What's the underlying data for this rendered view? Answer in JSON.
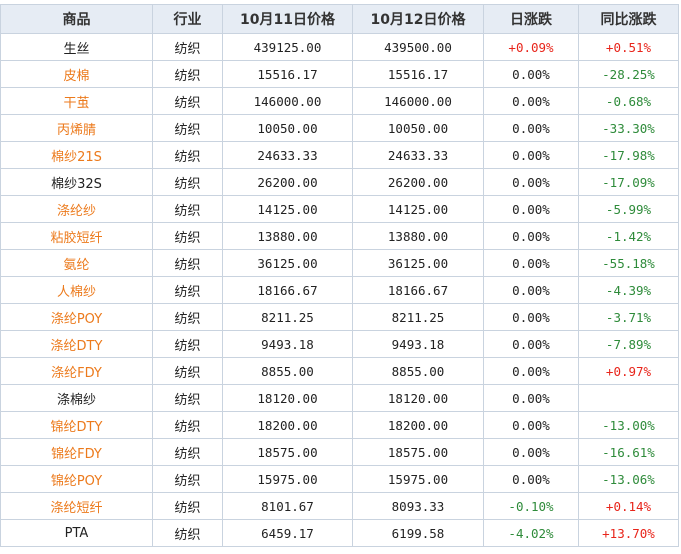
{
  "headers": [
    "商品",
    "行业",
    "10月11日价格",
    "10月12日价格",
    "日涨跌",
    "同比涨跌"
  ],
  "colors": {
    "link": "#ec7a1c",
    "up": "#e8251b",
    "down": "#2e8b3a",
    "header_bg": "#e6ecf4",
    "border": "#c9d3df"
  },
  "rows": [
    {
      "product": "生丝",
      "industry": "纺织",
      "price_oct11": "439125.00",
      "price_oct12": "439500.00",
      "daily_change": "+0.09%",
      "yoy_change": "+0.51%",
      "daily_dir": "up",
      "yoy_dir": "up",
      "name_color": "default"
    },
    {
      "product": "皮棉",
      "industry": "纺织",
      "price_oct11": "15516.17",
      "price_oct12": "15516.17",
      "daily_change": "0.00%",
      "yoy_change": "-28.25%",
      "daily_dir": "flat",
      "yoy_dir": "down",
      "name_color": "orange"
    },
    {
      "product": "干茧",
      "industry": "纺织",
      "price_oct11": "146000.00",
      "price_oct12": "146000.00",
      "daily_change": "0.00%",
      "yoy_change": "-0.68%",
      "daily_dir": "flat",
      "yoy_dir": "down",
      "name_color": "orange"
    },
    {
      "product": "丙烯腈",
      "industry": "纺织",
      "price_oct11": "10050.00",
      "price_oct12": "10050.00",
      "daily_change": "0.00%",
      "yoy_change": "-33.30%",
      "daily_dir": "flat",
      "yoy_dir": "down",
      "name_color": "orange"
    },
    {
      "product": "棉纱21S",
      "industry": "纺织",
      "price_oct11": "24633.33",
      "price_oct12": "24633.33",
      "daily_change": "0.00%",
      "yoy_change": "-17.98%",
      "daily_dir": "flat",
      "yoy_dir": "down",
      "name_color": "orange"
    },
    {
      "product": "棉纱32S",
      "industry": "纺织",
      "price_oct11": "26200.00",
      "price_oct12": "26200.00",
      "daily_change": "0.00%",
      "yoy_change": "-17.09%",
      "daily_dir": "flat",
      "yoy_dir": "down",
      "name_color": "default"
    },
    {
      "product": "涤纶纱",
      "industry": "纺织",
      "price_oct11": "14125.00",
      "price_oct12": "14125.00",
      "daily_change": "0.00%",
      "yoy_change": "-5.99%",
      "daily_dir": "flat",
      "yoy_dir": "down",
      "name_color": "orange"
    },
    {
      "product": "粘胶短纤",
      "industry": "纺织",
      "price_oct11": "13880.00",
      "price_oct12": "13880.00",
      "daily_change": "0.00%",
      "yoy_change": "-1.42%",
      "daily_dir": "flat",
      "yoy_dir": "down",
      "name_color": "orange"
    },
    {
      "product": "氨纶",
      "industry": "纺织",
      "price_oct11": "36125.00",
      "price_oct12": "36125.00",
      "daily_change": "0.00%",
      "yoy_change": "-55.18%",
      "daily_dir": "flat",
      "yoy_dir": "down",
      "name_color": "orange"
    },
    {
      "product": "人棉纱",
      "industry": "纺织",
      "price_oct11": "18166.67",
      "price_oct12": "18166.67",
      "daily_change": "0.00%",
      "yoy_change": "-4.39%",
      "daily_dir": "flat",
      "yoy_dir": "down",
      "name_color": "orange"
    },
    {
      "product": "涤纶POY",
      "industry": "纺织",
      "price_oct11": "8211.25",
      "price_oct12": "8211.25",
      "daily_change": "0.00%",
      "yoy_change": "-3.71%",
      "daily_dir": "flat",
      "yoy_dir": "down",
      "name_color": "orange"
    },
    {
      "product": "涤纶DTY",
      "industry": "纺织",
      "price_oct11": "9493.18",
      "price_oct12": "9493.18",
      "daily_change": "0.00%",
      "yoy_change": "-7.89%",
      "daily_dir": "flat",
      "yoy_dir": "down",
      "name_color": "orange"
    },
    {
      "product": "涤纶FDY",
      "industry": "纺织",
      "price_oct11": "8855.00",
      "price_oct12": "8855.00",
      "daily_change": "0.00%",
      "yoy_change": "+0.97%",
      "daily_dir": "flat",
      "yoy_dir": "up",
      "name_color": "orange"
    },
    {
      "product": "涤棉纱",
      "industry": "纺织",
      "price_oct11": "18120.00",
      "price_oct12": "18120.00",
      "daily_change": "0.00%",
      "yoy_change": "",
      "daily_dir": "flat",
      "yoy_dir": "flat",
      "name_color": "default"
    },
    {
      "product": "锦纶DTY",
      "industry": "纺织",
      "price_oct11": "18200.00",
      "price_oct12": "18200.00",
      "daily_change": "0.00%",
      "yoy_change": "-13.00%",
      "daily_dir": "flat",
      "yoy_dir": "down",
      "name_color": "orange"
    },
    {
      "product": "锦纶FDY",
      "industry": "纺织",
      "price_oct11": "18575.00",
      "price_oct12": "18575.00",
      "daily_change": "0.00%",
      "yoy_change": "-16.61%",
      "daily_dir": "flat",
      "yoy_dir": "down",
      "name_color": "orange"
    },
    {
      "product": "锦纶POY",
      "industry": "纺织",
      "price_oct11": "15975.00",
      "price_oct12": "15975.00",
      "daily_change": "0.00%",
      "yoy_change": "-13.06%",
      "daily_dir": "flat",
      "yoy_dir": "down",
      "name_color": "orange"
    },
    {
      "product": "涤纶短纤",
      "industry": "纺织",
      "price_oct11": "8101.67",
      "price_oct12": "8093.33",
      "daily_change": "-0.10%",
      "yoy_change": "+0.14%",
      "daily_dir": "down",
      "yoy_dir": "up",
      "name_color": "orange"
    },
    {
      "product": "PTA",
      "industry": "纺织",
      "price_oct11": "6459.17",
      "price_oct12": "6199.58",
      "daily_change": "-4.02%",
      "yoy_change": "+13.70%",
      "daily_dir": "down",
      "yoy_dir": "up",
      "name_color": "default"
    }
  ]
}
